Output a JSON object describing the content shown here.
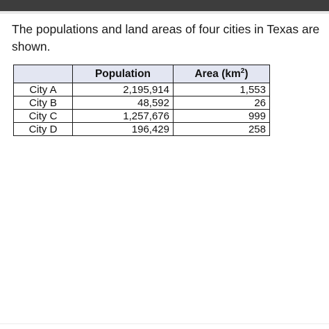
{
  "question": {
    "text": "The populations and land areas of four cities in Texas are shown."
  },
  "table": {
    "headers": {
      "name": "",
      "population": "Population",
      "area_prefix": "Area (km",
      "area_exponent": "2",
      "area_suffix": ")"
    },
    "rows": [
      {
        "city": "City A",
        "population": "2,195,914",
        "area": "1,553"
      },
      {
        "city": "City B",
        "population": "48,592",
        "area": "26"
      },
      {
        "city": "City C",
        "population": "1,257,676",
        "area": "999"
      },
      {
        "city": "City D",
        "population": "196,429",
        "area": "258"
      }
    ]
  }
}
